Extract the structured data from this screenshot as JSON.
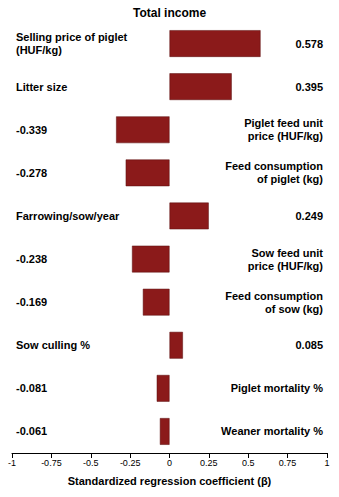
{
  "chart_data": {
    "type": "bar",
    "orientation": "horizontal",
    "title": "Total income",
    "x_label": "Standardized regression coefficient (β)",
    "categories": [
      "Selling price of piglet\n(HUF/kg)",
      "Litter size",
      "Piglet feed unit\nprice (HUF/kg)",
      "Feed consumption\nof piglet (kg)",
      "Farrowing/sow/year",
      "Sow feed unit\nprice (HUF/kg)",
      "Feed consumption\nof sow (kg)",
      "Sow culling %",
      "Piglet mortality %",
      "Weaner mortality %"
    ],
    "values": [
      0.578,
      0.395,
      -0.339,
      -0.278,
      0.249,
      -0.238,
      -0.169,
      0.085,
      -0.081,
      -0.061
    ],
    "color": "#8b1a1a",
    "xlim": [
      -1,
      1
    ],
    "xticks": [
      -1,
      -0.75,
      -0.5,
      -0.25,
      0,
      0.25,
      0.5,
      0.75,
      1
    ],
    "grid": false,
    "data_labels": true
  }
}
